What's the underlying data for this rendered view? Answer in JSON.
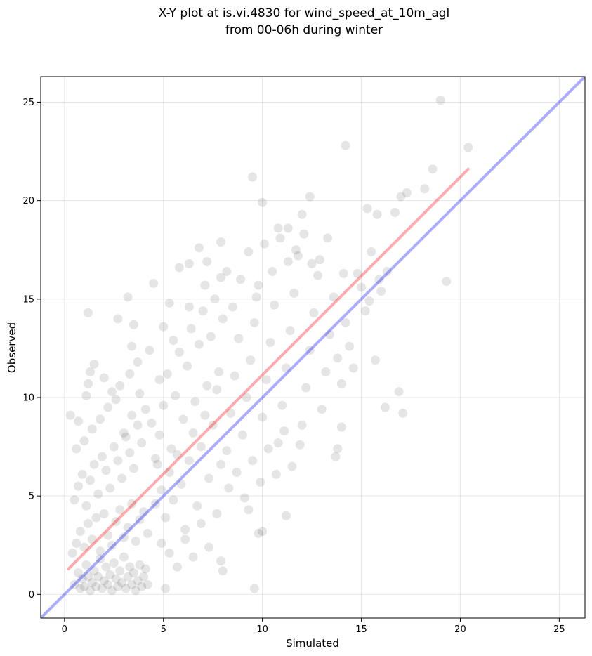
{
  "chart_data": {
    "type": "scatter",
    "title_line1": "X-Y plot at is.vi.4830 for wind_speed_at_10m_agl",
    "title_line2": "from 00-06h during winter",
    "xlabel": "Simulated",
    "ylabel": "Observed",
    "xlim": [
      -1.2,
      26.3
    ],
    "ylim": [
      -1.2,
      26.3
    ],
    "xticks": [
      0,
      5,
      10,
      15,
      20,
      25
    ],
    "yticks": [
      0,
      5,
      10,
      15,
      20,
      25
    ],
    "grid": true,
    "point_color": "#000000",
    "point_alpha": 0.1,
    "identity_line": {
      "color": "#0000ff",
      "alpha": 0.33,
      "from": [
        -1.2,
        -1.2
      ],
      "to": [
        26.3,
        26.3
      ]
    },
    "fit_line": {
      "color": "#ff0000",
      "alpha": 0.33,
      "from": [
        0.2,
        1.3
      ],
      "to": [
        20.4,
        21.6
      ]
    },
    "series": [
      {
        "points": [
          [
            0.3,
            9.1
          ],
          [
            0.6,
            7.4
          ],
          [
            0.7,
            8.8
          ],
          [
            1.2,
            14.3
          ],
          [
            1.3,
            11.3
          ],
          [
            1.5,
            11.7
          ],
          [
            1.2,
            10.7
          ],
          [
            1.1,
            10.1
          ],
          [
            2.0,
            11.0
          ],
          [
            2.8,
            10.6
          ],
          [
            3.2,
            15.1
          ],
          [
            3.4,
            12.6
          ],
          [
            3.5,
            13.7
          ],
          [
            2.7,
            14.0
          ],
          [
            4.5,
            15.8
          ],
          [
            5.0,
            13.6
          ],
          [
            5.3,
            14.8
          ],
          [
            5.8,
            16.6
          ],
          [
            6.3,
            16.8
          ],
          [
            6.8,
            17.6
          ],
          [
            7.2,
            16.9
          ],
          [
            7.9,
            17.9
          ],
          [
            8.2,
            16.4
          ],
          [
            9.5,
            21.2
          ],
          [
            10.0,
            19.9
          ],
          [
            10.8,
            18.6
          ],
          [
            11.3,
            18.6
          ],
          [
            12.0,
            19.3
          ],
          [
            12.4,
            20.2
          ],
          [
            14.2,
            22.8
          ],
          [
            15.3,
            19.6
          ],
          [
            15.8,
            19.3
          ],
          [
            16.7,
            19.4
          ],
          [
            17.0,
            20.2
          ],
          [
            17.3,
            20.4
          ],
          [
            18.2,
            20.6
          ],
          [
            18.6,
            21.6
          ],
          [
            19.0,
            25.1
          ],
          [
            20.4,
            22.7
          ],
          [
            19.3,
            15.9
          ],
          [
            16.9,
            10.3
          ],
          [
            17.1,
            9.2
          ],
          [
            16.2,
            9.5
          ],
          [
            15.7,
            11.9
          ],
          [
            14.0,
            8.5
          ],
          [
            13.8,
            7.4
          ],
          [
            13.7,
            7.0
          ],
          [
            11.2,
            4.0
          ],
          [
            10.0,
            3.2
          ],
          [
            9.8,
            3.1
          ],
          [
            9.6,
            0.3
          ],
          [
            9.3,
            4.3
          ],
          [
            8.0,
            1.2
          ],
          [
            7.9,
            1.7
          ],
          [
            5.1,
            0.3
          ],
          [
            4.2,
            0.5
          ],
          [
            0.5,
            0.5
          ],
          [
            0.7,
            1.1
          ],
          [
            0.8,
            0.3
          ],
          [
            0.9,
            0.8
          ],
          [
            1.0,
            0.4
          ],
          [
            1.1,
            1.5
          ],
          [
            1.2,
            0.9
          ],
          [
            1.3,
            0.2
          ],
          [
            1.4,
            0.6
          ],
          [
            1.5,
            1.2
          ],
          [
            1.6,
            0.4
          ],
          [
            1.7,
            0.9
          ],
          [
            1.8,
            1.8
          ],
          [
            1.9,
            0.3
          ],
          [
            2.0,
            0.7
          ],
          [
            2.1,
            1.4
          ],
          [
            2.2,
            0.5
          ],
          [
            2.3,
            1.0
          ],
          [
            2.4,
            0.2
          ],
          [
            2.5,
            1.6
          ],
          [
            2.6,
            0.8
          ],
          [
            2.7,
            0.4
          ],
          [
            2.8,
            1.2
          ],
          [
            2.9,
            0.6
          ],
          [
            3.0,
            1.9
          ],
          [
            3.1,
            0.3
          ],
          [
            3.2,
            0.9
          ],
          [
            3.3,
            1.4
          ],
          [
            3.4,
            0.5
          ],
          [
            3.5,
            1.1
          ],
          [
            3.6,
            0.2
          ],
          [
            3.7,
            0.7
          ],
          [
            3.8,
            1.5
          ],
          [
            3.9,
            0.4
          ],
          [
            4.0,
            0.9
          ],
          [
            4.1,
            1.3
          ],
          [
            0.4,
            2.1
          ],
          [
            0.6,
            2.6
          ],
          [
            0.8,
            3.2
          ],
          [
            1.0,
            2.4
          ],
          [
            1.2,
            3.6
          ],
          [
            1.4,
            2.8
          ],
          [
            1.6,
            3.9
          ],
          [
            1.8,
            2.2
          ],
          [
            2.0,
            4.1
          ],
          [
            2.2,
            3.0
          ],
          [
            2.4,
            2.5
          ],
          [
            2.6,
            3.7
          ],
          [
            2.8,
            4.3
          ],
          [
            3.0,
            2.9
          ],
          [
            3.2,
            3.4
          ],
          [
            3.4,
            4.6
          ],
          [
            3.6,
            2.7
          ],
          [
            3.8,
            3.8
          ],
          [
            4.0,
            4.2
          ],
          [
            4.2,
            3.1
          ],
          [
            0.5,
            4.8
          ],
          [
            0.7,
            5.5
          ],
          [
            0.9,
            6.1
          ],
          [
            1.1,
            4.5
          ],
          [
            1.3,
            5.8
          ],
          [
            1.5,
            6.6
          ],
          [
            1.7,
            5.1
          ],
          [
            1.9,
            7.0
          ],
          [
            2.1,
            6.3
          ],
          [
            2.3,
            5.4
          ],
          [
            2.5,
            7.5
          ],
          [
            2.7,
            6.8
          ],
          [
            2.9,
            5.9
          ],
          [
            3.1,
            8.0
          ],
          [
            3.3,
            7.2
          ],
          [
            3.5,
            6.4
          ],
          [
            3.7,
            8.6
          ],
          [
            3.9,
            7.7
          ],
          [
            1.0,
            7.8
          ],
          [
            1.4,
            8.4
          ],
          [
            1.8,
            8.9
          ],
          [
            2.2,
            9.5
          ],
          [
            2.6,
            9.9
          ],
          [
            3.0,
            8.2
          ],
          [
            3.4,
            9.1
          ],
          [
            3.8,
            10.2
          ],
          [
            4.1,
            9.4
          ],
          [
            4.4,
            8.7
          ],
          [
            4.6,
            6.9
          ],
          [
            4.8,
            10.9
          ],
          [
            3.3,
            11.2
          ],
          [
            2.4,
            10.3
          ],
          [
            4.3,
            12.4
          ],
          [
            3.7,
            11.8
          ],
          [
            4.6,
            4.6
          ],
          [
            4.9,
            5.3
          ],
          [
            5.1,
            3.9
          ],
          [
            5.3,
            6.2
          ],
          [
            5.5,
            4.8
          ],
          [
            5.7,
            7.1
          ],
          [
            5.9,
            5.6
          ],
          [
            6.1,
            3.3
          ],
          [
            6.3,
            6.8
          ],
          [
            6.5,
            8.2
          ],
          [
            6.7,
            4.5
          ],
          [
            6.9,
            7.5
          ],
          [
            7.1,
            9.1
          ],
          [
            7.3,
            5.9
          ],
          [
            7.5,
            8.6
          ],
          [
            7.7,
            10.4
          ],
          [
            7.9,
            6.6
          ],
          [
            4.8,
            8.1
          ],
          [
            5.0,
            9.6
          ],
          [
            5.2,
            11.2
          ],
          [
            5.4,
            7.4
          ],
          [
            5.6,
            10.1
          ],
          [
            5.8,
            12.3
          ],
          [
            6.0,
            8.9
          ],
          [
            6.2,
            11.6
          ],
          [
            6.4,
            13.5
          ],
          [
            6.6,
            9.8
          ],
          [
            6.8,
            12.7
          ],
          [
            7.0,
            14.4
          ],
          [
            7.2,
            10.6
          ],
          [
            7.4,
            13.1
          ],
          [
            7.6,
            15.0
          ],
          [
            7.8,
            11.3
          ],
          [
            8.0,
            14.0
          ],
          [
            4.9,
            2.6
          ],
          [
            5.3,
            2.1
          ],
          [
            5.7,
            1.4
          ],
          [
            6.1,
            2.8
          ],
          [
            6.5,
            1.9
          ],
          [
            6.9,
            3.6
          ],
          [
            7.3,
            2.4
          ],
          [
            7.7,
            4.1
          ],
          [
            4.7,
            6.6
          ],
          [
            5.5,
            12.9
          ],
          [
            6.3,
            14.6
          ],
          [
            7.1,
            15.7
          ],
          [
            7.9,
            16.1
          ],
          [
            8.2,
            7.3
          ],
          [
            8.4,
            9.2
          ],
          [
            8.6,
            11.1
          ],
          [
            8.8,
            13.0
          ],
          [
            9.0,
            8.1
          ],
          [
            9.2,
            10.0
          ],
          [
            9.4,
            11.9
          ],
          [
            9.6,
            13.8
          ],
          [
            9.8,
            15.7
          ],
          [
            10.0,
            9.0
          ],
          [
            10.2,
            10.9
          ],
          [
            10.4,
            12.8
          ],
          [
            10.6,
            14.7
          ],
          [
            10.8,
            7.7
          ],
          [
            11.0,
            9.6
          ],
          [
            11.2,
            11.5
          ],
          [
            11.4,
            13.4
          ],
          [
            11.6,
            15.3
          ],
          [
            11.8,
            17.2
          ],
          [
            12.0,
            8.6
          ],
          [
            12.2,
            10.5
          ],
          [
            12.4,
            12.4
          ],
          [
            12.6,
            14.3
          ],
          [
            12.8,
            16.2
          ],
          [
            13.0,
            9.4
          ],
          [
            13.2,
            11.3
          ],
          [
            13.4,
            13.2
          ],
          [
            13.6,
            15.1
          ],
          [
            13.8,
            12.0
          ],
          [
            14.0,
            10.7
          ],
          [
            14.2,
            13.8
          ],
          [
            14.4,
            12.6
          ],
          [
            14.6,
            11.5
          ],
          [
            8.3,
            5.4
          ],
          [
            8.7,
            6.2
          ],
          [
            9.1,
            4.9
          ],
          [
            9.5,
            6.8
          ],
          [
            9.9,
            5.7
          ],
          [
            10.3,
            7.4
          ],
          [
            10.7,
            6.1
          ],
          [
            11.1,
            8.3
          ],
          [
            11.5,
            6.5
          ],
          [
            11.9,
            7.6
          ],
          [
            8.5,
            14.6
          ],
          [
            8.9,
            16.0
          ],
          [
            9.3,
            17.4
          ],
          [
            9.7,
            15.1
          ],
          [
            10.1,
            17.8
          ],
          [
            10.5,
            16.4
          ],
          [
            10.9,
            18.1
          ],
          [
            11.3,
            16.9
          ],
          [
            11.7,
            17.5
          ],
          [
            12.1,
            18.3
          ],
          [
            12.5,
            16.8
          ],
          [
            12.9,
            17.0
          ],
          [
            13.3,
            18.1
          ],
          [
            15.0,
            15.6
          ],
          [
            15.5,
            17.4
          ],
          [
            15.9,
            16.0
          ],
          [
            16.3,
            16.4
          ],
          [
            16.0,
            15.4
          ],
          [
            15.4,
            14.9
          ],
          [
            15.2,
            14.4
          ],
          [
            14.8,
            16.3
          ],
          [
            14.1,
            16.3
          ]
        ]
      }
    ]
  }
}
